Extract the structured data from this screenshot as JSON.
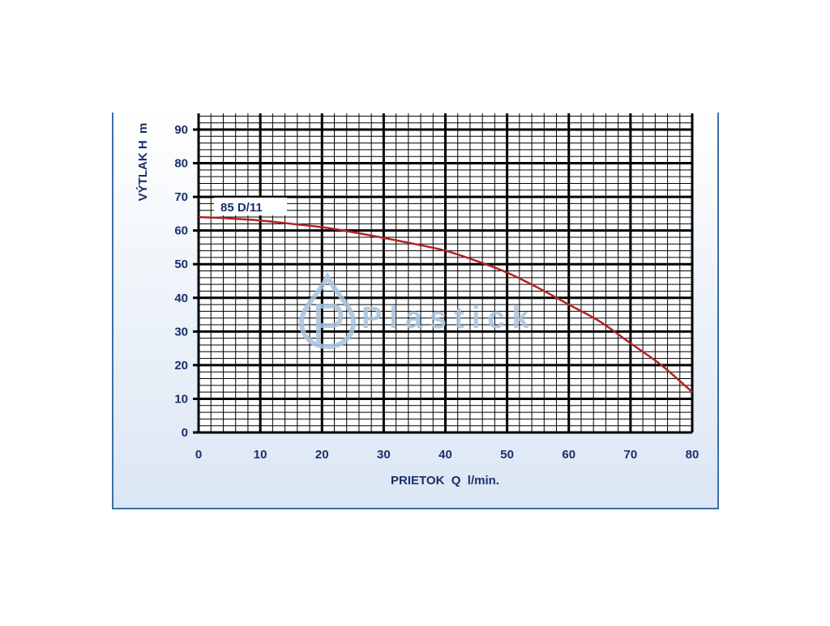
{
  "chart_data": {
    "type": "line",
    "xlabel": "PRIETOK  Q  l/min.",
    "ylabel": "VÝTLAK H  m",
    "xlim": [
      0,
      80
    ],
    "ylim": [
      0,
      90
    ],
    "x_ticks": [
      0,
      10,
      20,
      30,
      40,
      50,
      60,
      70,
      80
    ],
    "y_ticks": [
      0,
      10,
      20,
      30,
      40,
      50,
      60,
      70,
      80,
      90
    ],
    "grid": true,
    "series": [
      {
        "name": "85 D/11",
        "color": "#b22222",
        "x": [
          0,
          5,
          10,
          15,
          20,
          25,
          30,
          35,
          40,
          45,
          50,
          55,
          60,
          65,
          70,
          75,
          80
        ],
        "y": [
          64,
          63.6,
          63,
          62,
          61,
          59.5,
          57.8,
          56,
          54,
          51,
          47.5,
          43,
          38,
          33,
          26.5,
          20,
          12
        ]
      }
    ]
  },
  "watermark": {
    "text": "Plastick",
    "color": "#a9c3de"
  },
  "colors": {
    "panel_top": "#ffffff",
    "panel_bottom": "#dbe6f4",
    "panel_border": "#3a6fa8",
    "grid": "#000000",
    "text": "#1a2f6a"
  }
}
